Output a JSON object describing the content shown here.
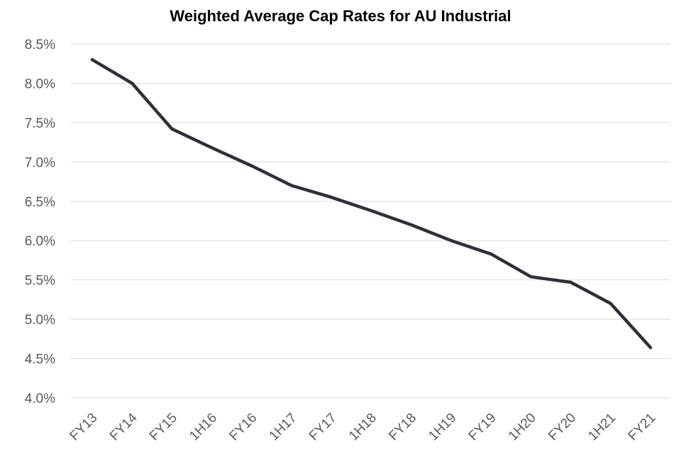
{
  "chart_data": {
    "type": "line",
    "title": "Weighted Average Cap Rates for AU Industrial",
    "xlabel": "",
    "ylabel": "",
    "categories": [
      "FY13",
      "FY14",
      "FY15",
      "1H16",
      "FY16",
      "1H17",
      "FY17",
      "1H18",
      "FY18",
      "1H19",
      "FY19",
      "1H20",
      "FY20",
      "1H21",
      "FY21"
    ],
    "series": [
      {
        "values": [
          8.3,
          8.0,
          7.42,
          7.18,
          6.95,
          6.7,
          6.55,
          6.38,
          6.2,
          6.0,
          5.83,
          5.54,
          5.47,
          5.2,
          4.64
        ],
        "color": "#2b303a"
      }
    ],
    "ylim": [
      4.0,
      8.5
    ],
    "yticks": [
      "4.0%",
      "4.5%",
      "5.0%",
      "5.5%",
      "6.0%",
      "6.5%",
      "7.0%",
      "7.5%",
      "8.0%",
      "8.5%"
    ],
    "ytick_values": [
      4.0,
      4.5,
      5.0,
      5.5,
      6.0,
      6.5,
      7.0,
      7.5,
      8.0,
      8.5
    ],
    "grid": true,
    "legend": "none"
  }
}
